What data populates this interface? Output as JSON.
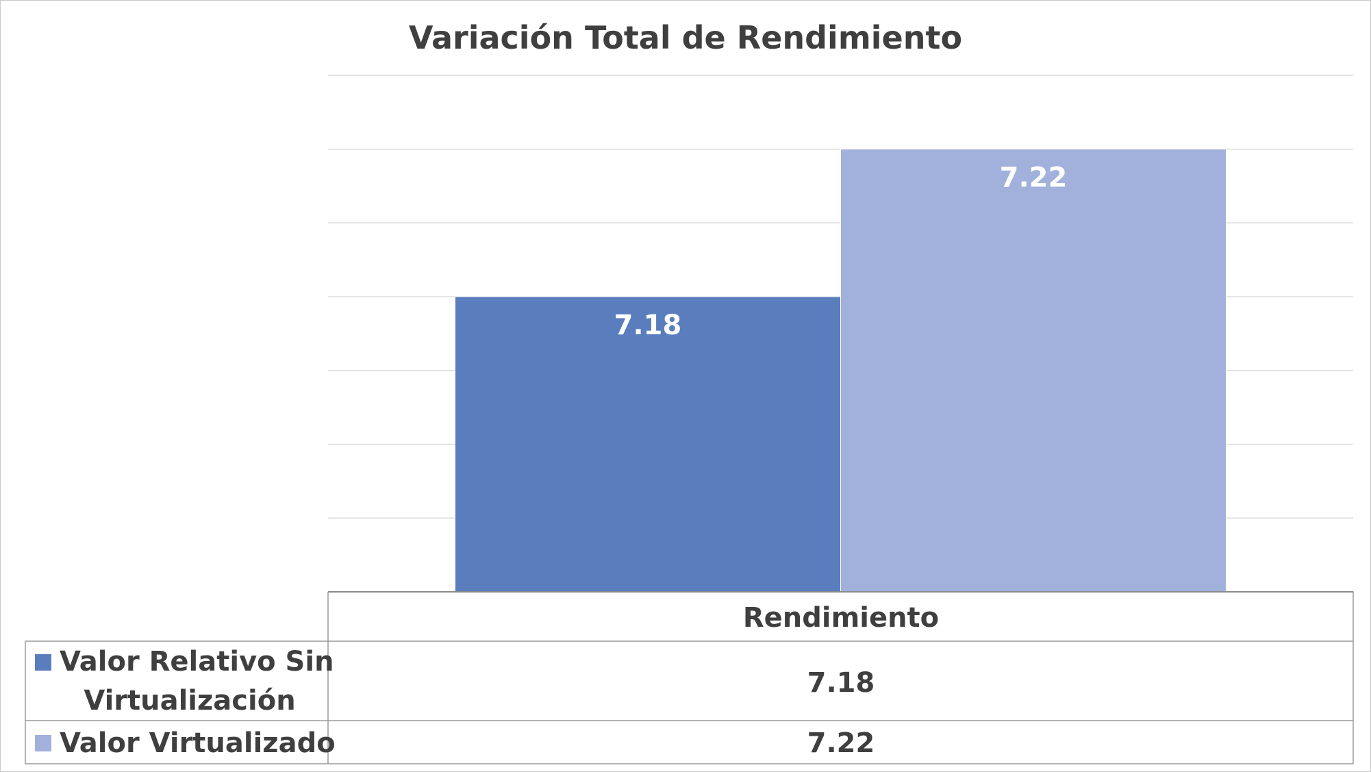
{
  "chart_data": {
    "type": "bar",
    "title": "Variación Total de Rendimiento",
    "categories": [
      "Rendimiento"
    ],
    "series": [
      {
        "name": "Valor Relativo Sin Virtualización",
        "values": [
          7.18
        ],
        "color": "#5a7dbd"
      },
      {
        "name": "Valor Virtualizado",
        "values": [
          7.22
        ],
        "color": "#a2b1db"
      }
    ],
    "ylim": [
      7.1,
      7.24
    ],
    "grid": true,
    "data_labels": true,
    "legend": "data-table",
    "data_table": {
      "header": "Rendimiento",
      "rows": [
        {
          "label_line1": "Valor Relativo Sin",
          "label_line2": "Virtualización",
          "value": "7.18"
        },
        {
          "label_line1": "Valor Virtualizado",
          "value": "7.22"
        }
      ]
    }
  }
}
